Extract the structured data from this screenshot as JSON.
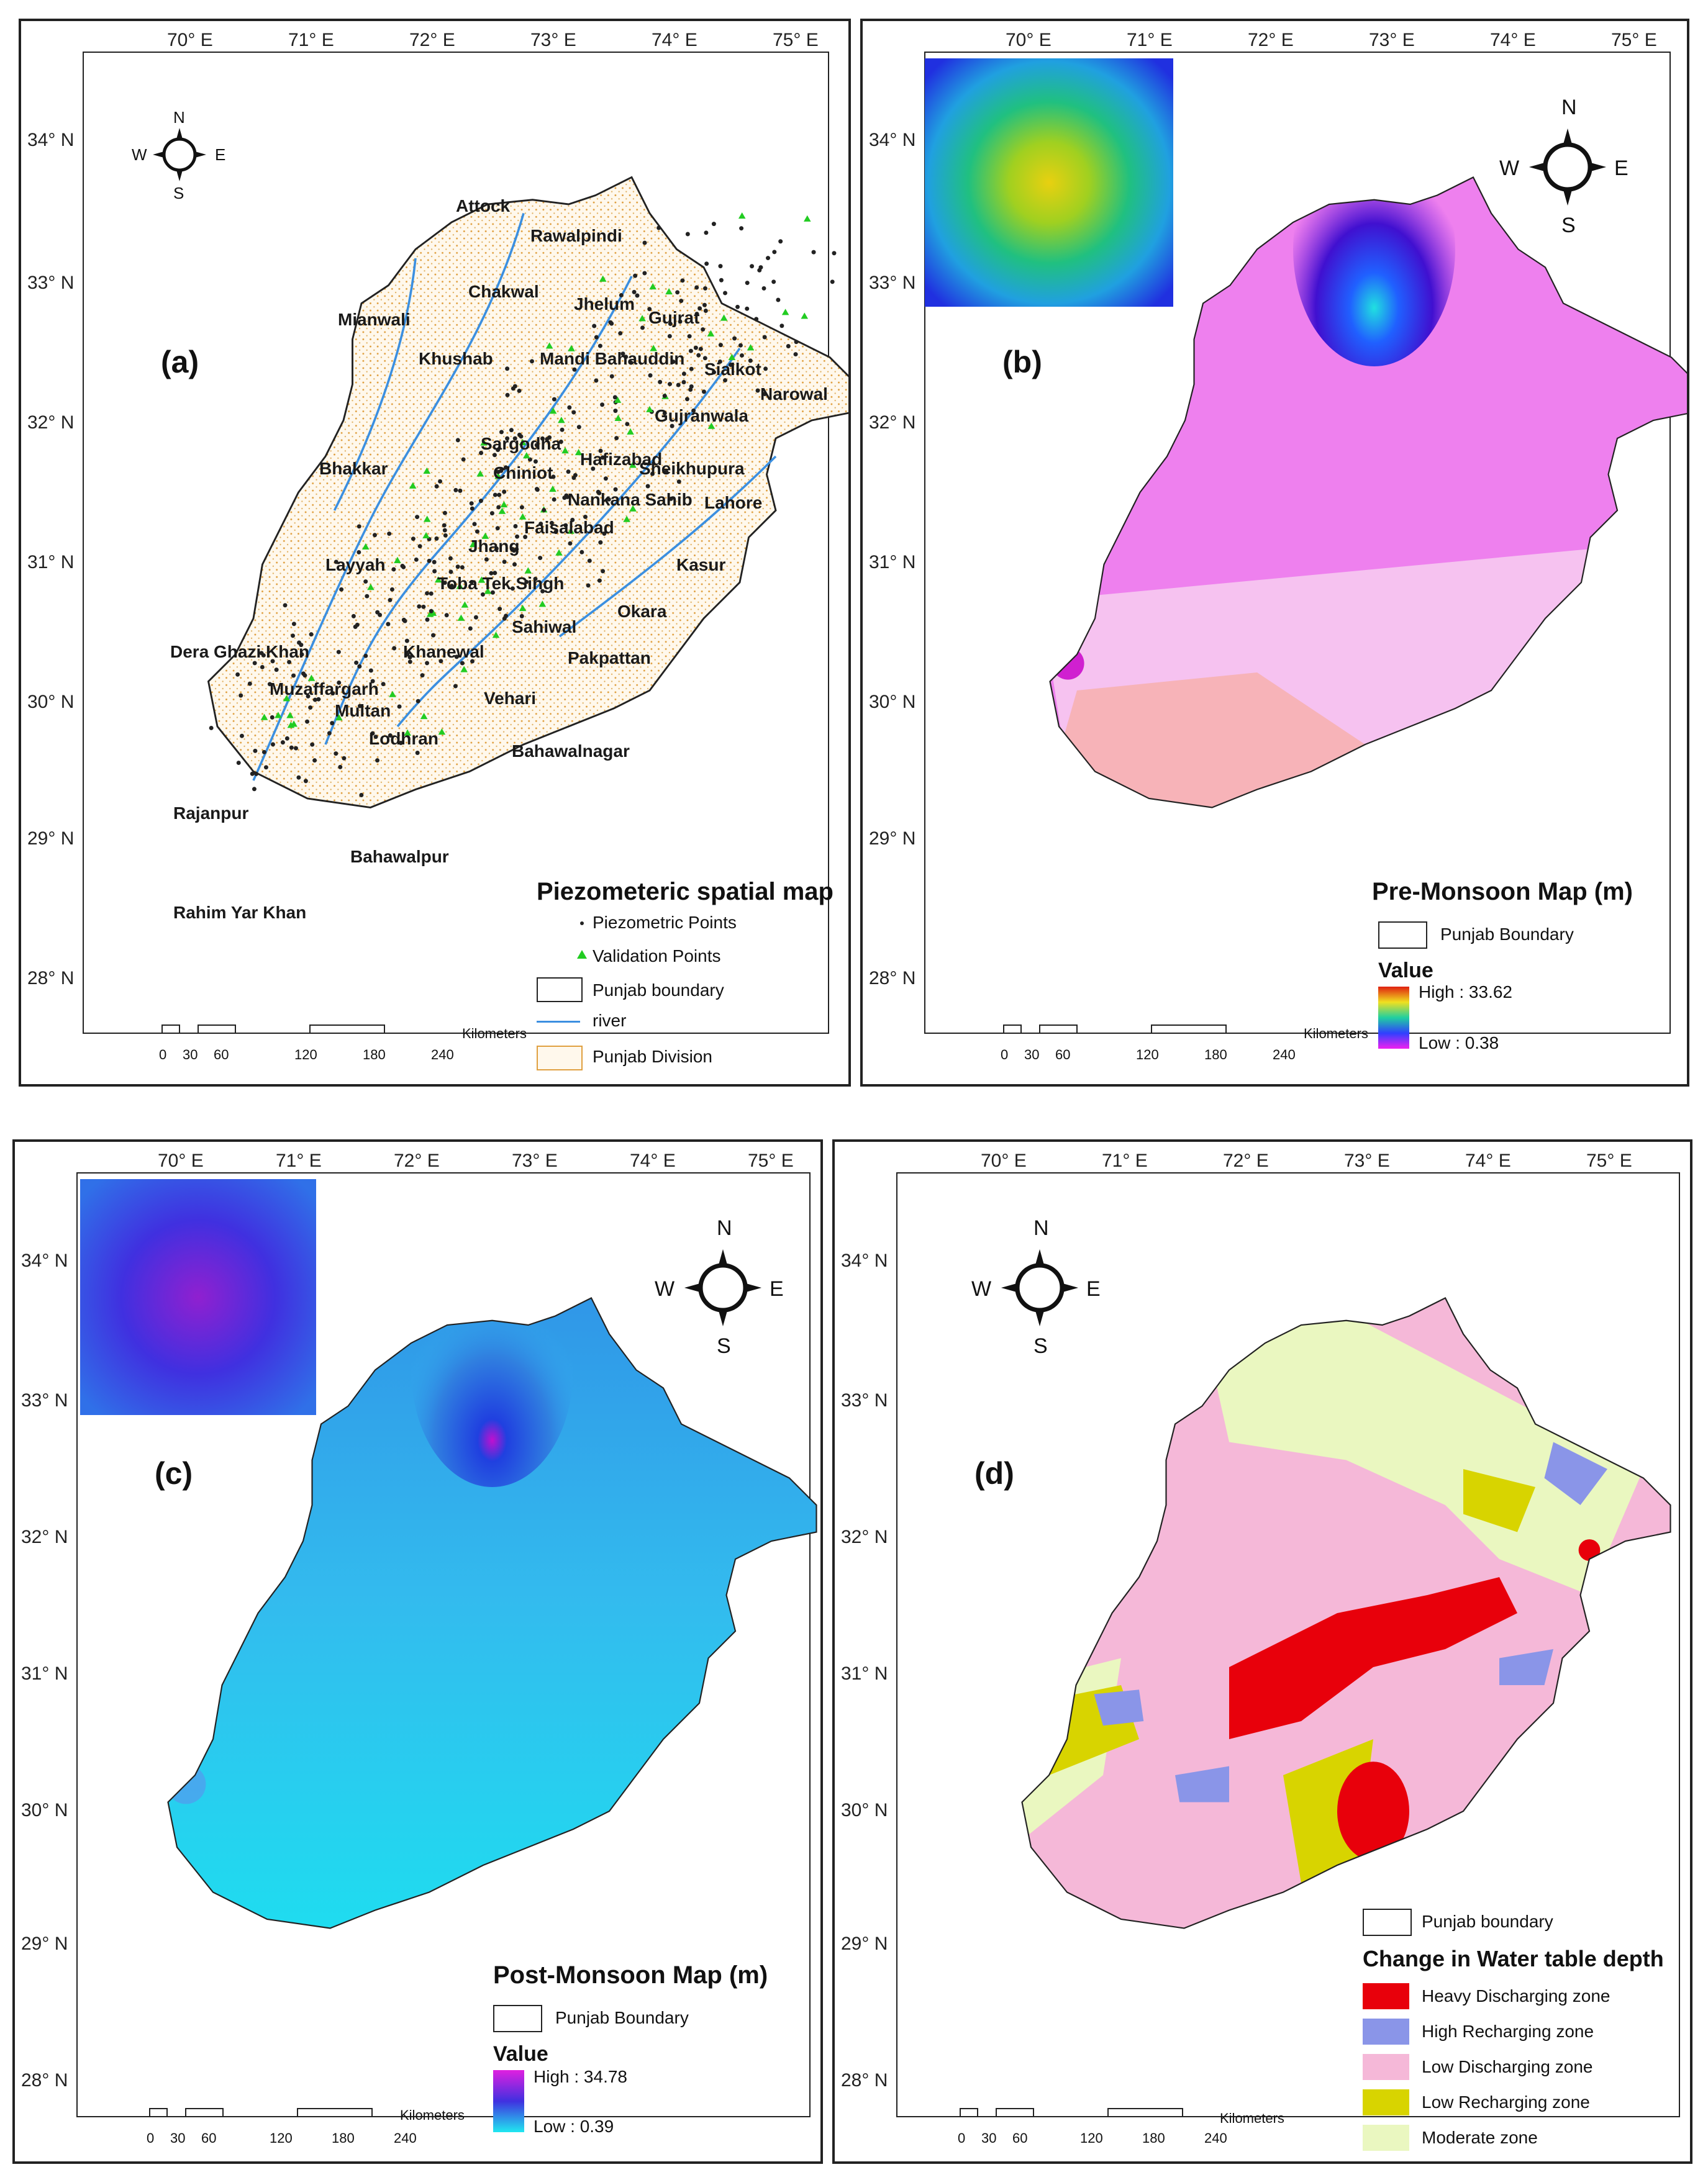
{
  "lon_ticks": [
    "70° E",
    "71° E",
    "72° E",
    "73° E",
    "74° E",
    "75° E"
  ],
  "lat_ticks": [
    "34° N",
    "33° N",
    "32° N",
    "31° N",
    "30° N",
    "29° N",
    "28° N"
  ],
  "compass": {
    "n": "N",
    "s": "S",
    "e": "E",
    "w": "W"
  },
  "scalebar": {
    "units": "Kilometers",
    "labels": [
      "0",
      "30",
      "60",
      "120",
      "180",
      "240"
    ]
  },
  "panel_a": {
    "label": "(a)",
    "title": "Piezometeric spatial map",
    "legend": [
      "Piezometric Points",
      "Validation Points",
      "Punjab boundary",
      "river",
      "Punjab Division"
    ],
    "cities": [
      "Attock",
      "Rawalpindi",
      "Chakwal",
      "Jhelum",
      "Mianwali",
      "Gujrat",
      "Khushab",
      "Mandi Bahauddin",
      "Sialkot",
      "Narowal",
      "Sargodha",
      "Gujranwala",
      "Hafizabad",
      "Bhakkar",
      "Chiniot",
      "Sheikhupura",
      "Nankana Sahib",
      "Lahore",
      "Faisalabad",
      "Jhang",
      "Layyah",
      "Toba Tek Singh",
      "Kasur",
      "Okara",
      "Sahiwal",
      "Dera Ghazi Khan",
      "Khanewal",
      "Pakpattan",
      "Muzaffargarh",
      "Multan",
      "Vehari",
      "Lodhran",
      "Bahawalnagar",
      "Rajanpur",
      "Bahawalpur",
      "Rahim Yar Khan"
    ]
  },
  "panel_b": {
    "label": "(b)",
    "title": "Pre-Monsoon Map (m)",
    "boundary": "Punjab Boundary",
    "value_title": "Value",
    "high": "High : 33.62",
    "low": "Low : 0.38"
  },
  "panel_c": {
    "label": "(c)",
    "title": "Post-Monsoon Map (m)",
    "boundary": "Punjab Boundary",
    "value_title": "Value",
    "high": "High : 34.78",
    "low": "Low : 0.39"
  },
  "panel_d": {
    "label": "(d)",
    "boundary": "Punjab boundary",
    "title": "Change in Water table depth",
    "legend": [
      {
        "label": "Heavy Discharging zone",
        "color": "#e8000b"
      },
      {
        "label": "High Recharging zone",
        "color": "#8a95e8"
      },
      {
        "label": "Low Discharging zone",
        "color": "#f5b8d8"
      },
      {
        "label": "Low Recharging zone",
        "color": "#d8d400"
      },
      {
        "label": "Moderate zone",
        "color": "#eaf7c0"
      }
    ]
  },
  "colors": {
    "river": "#3b8fe0",
    "division": "#e0a040",
    "pre_fill": "#ee82ee",
    "post_fill": "#33bbee"
  }
}
